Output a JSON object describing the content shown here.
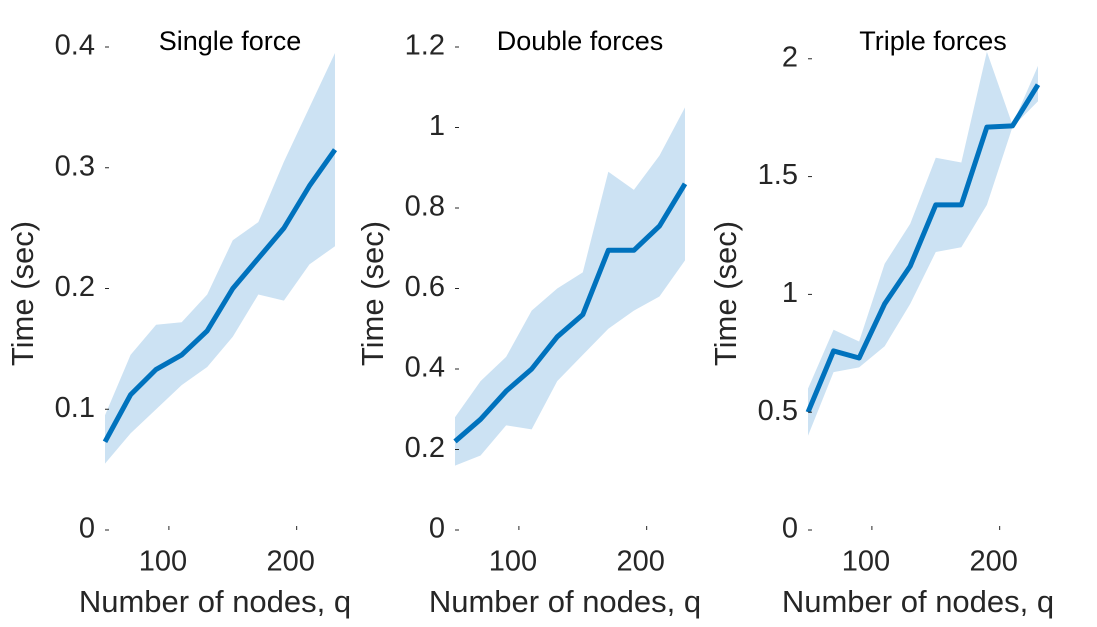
{
  "chart_data": [
    {
      "type": "line",
      "title": "Single force",
      "x_label": "Number of nodes, q",
      "y_label": "Time (sec)",
      "x": [
        50,
        70,
        90,
        110,
        130,
        150,
        170,
        190,
        210,
        230
      ],
      "values": [
        0.073,
        0.112,
        0.133,
        0.145,
        0.165,
        0.2,
        0.225,
        0.25,
        0.285,
        0.315
      ],
      "upper": [
        0.095,
        0.145,
        0.17,
        0.172,
        0.195,
        0.24,
        0.255,
        0.305,
        0.35,
        0.395
      ],
      "lower": [
        0.055,
        0.08,
        0.1,
        0.12,
        0.135,
        0.16,
        0.195,
        0.19,
        0.22,
        0.235
      ],
      "color": "#0072bd",
      "band_color": "#cce2f3",
      "xlim": [
        50,
        230
      ],
      "xticks": [
        100,
        200
      ],
      "ylim": [
        0,
        0.4
      ],
      "yticks": [
        0,
        0.1,
        0.2,
        0.3,
        0.4
      ]
    },
    {
      "type": "line",
      "title": "Double forces",
      "x_label": "Number of nodes, q",
      "y_label": "Time (sec)",
      "x": [
        50,
        70,
        90,
        110,
        130,
        150,
        170,
        190,
        210,
        230
      ],
      "values": [
        0.22,
        0.275,
        0.345,
        0.4,
        0.48,
        0.535,
        0.695,
        0.695,
        0.755,
        0.86
      ],
      "upper": [
        0.28,
        0.37,
        0.43,
        0.545,
        0.6,
        0.64,
        0.89,
        0.845,
        0.93,
        1.05
      ],
      "lower": [
        0.16,
        0.185,
        0.26,
        0.25,
        0.37,
        0.435,
        0.5,
        0.545,
        0.58,
        0.67
      ],
      "color": "#0072bd",
      "band_color": "#cce2f3",
      "xlim": [
        50,
        230
      ],
      "xticks": [
        100,
        200
      ],
      "ylim": [
        0,
        1.2
      ],
      "yticks": [
        0,
        0.2,
        0.4,
        0.6,
        0.8,
        1,
        1.2
      ]
    },
    {
      "type": "line",
      "title": "Triple forces",
      "x_label": "Number of nodes, q",
      "y_label": "Time (sec)",
      "x": [
        50,
        70,
        90,
        110,
        130,
        150,
        170,
        190,
        210,
        230
      ],
      "values": [
        0.5,
        0.76,
        0.73,
        0.96,
        1.12,
        1.38,
        1.38,
        1.71,
        1.715,
        1.89
      ],
      "upper": [
        0.6,
        0.85,
        0.8,
        1.13,
        1.3,
        1.58,
        1.56,
        2.03,
        1.72,
        1.97
      ],
      "lower": [
        0.4,
        0.67,
        0.69,
        0.78,
        0.96,
        1.18,
        1.2,
        1.38,
        1.71,
        1.82
      ],
      "color": "#0072bd",
      "band_color": "#cce2f3",
      "xlim": [
        50,
        230
      ],
      "xticks": [
        100,
        200
      ],
      "ylim": [
        0,
        2.05
      ],
      "yticks": [
        0,
        0.5,
        1,
        1.5,
        2
      ]
    }
  ]
}
